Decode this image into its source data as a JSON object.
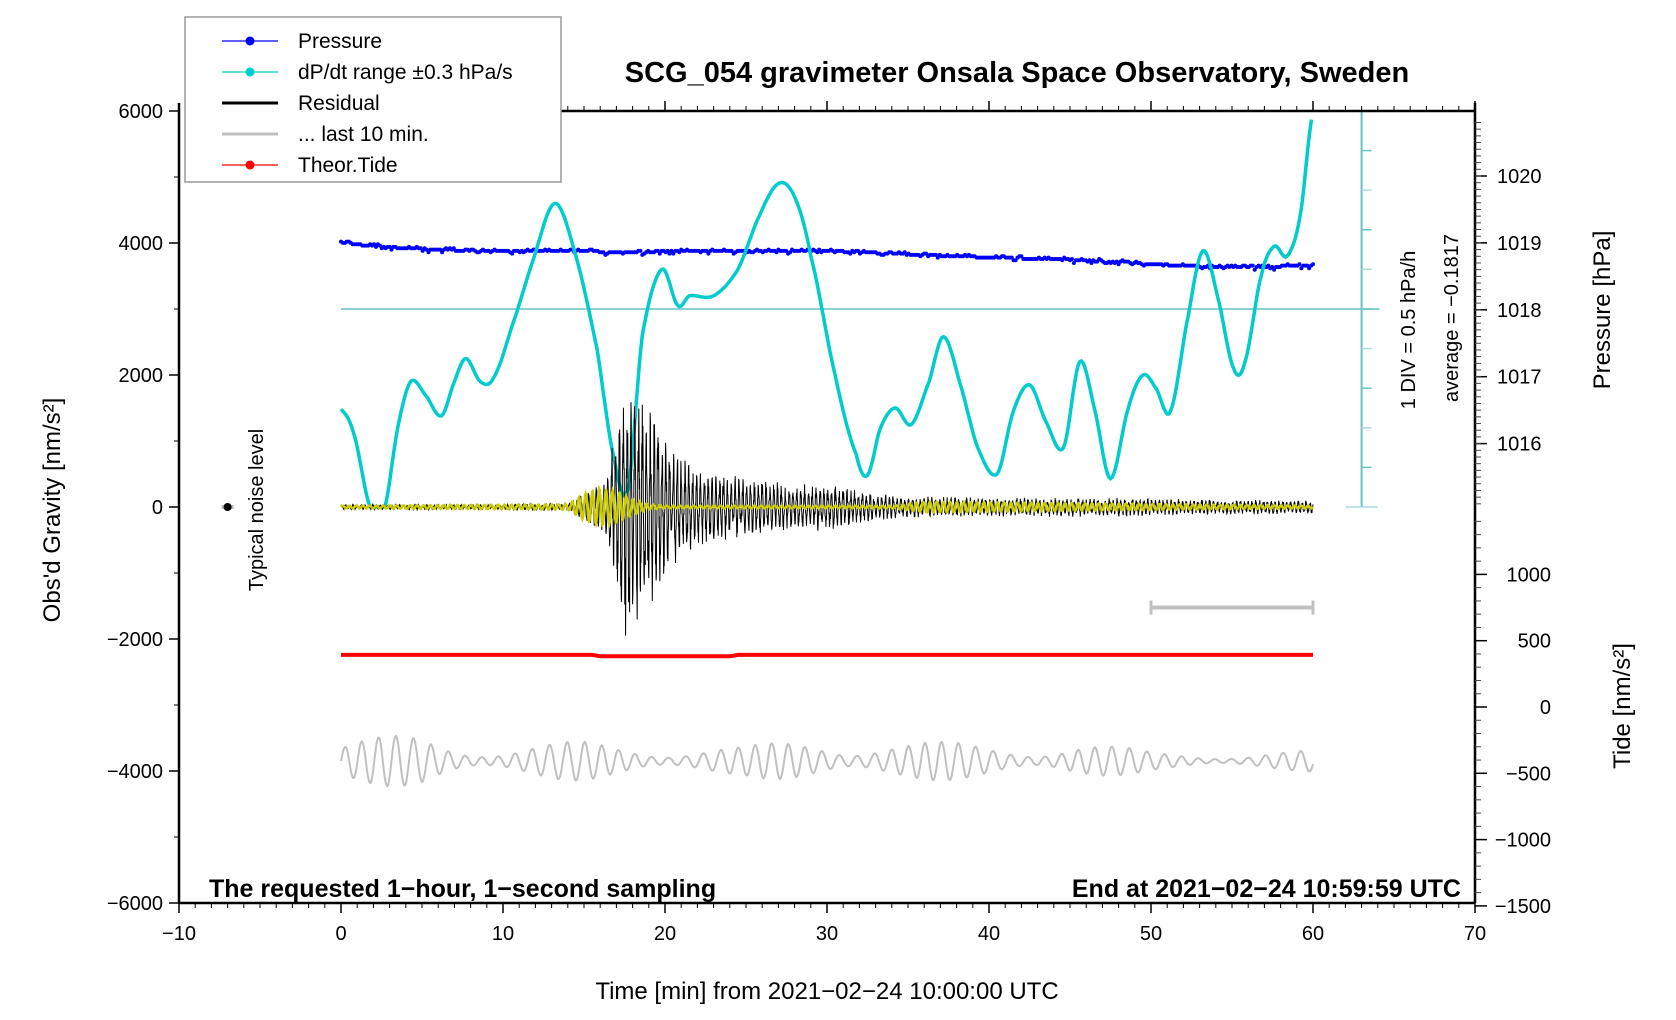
{
  "chart_data": {
    "type": "line",
    "title": "SCG_054 gravimeter Onsala Space Observatory, Sweden",
    "xlabel": "Time [min] from 2021−02−24 10:00:00 UTC",
    "ylabel_left": "Obs'd Gravity [nm/s²]",
    "ylabel_right_pressure": "Pressure [hPa]",
    "ylabel_right_tide": "Tide [nm/s²]",
    "xlim": [
      -10,
      70
    ],
    "ylim_left": [
      -6000,
      6000
    ],
    "x_ticks": [
      -10,
      0,
      10,
      20,
      30,
      40,
      50,
      60,
      70
    ],
    "x_tick_labels": [
      "−10",
      "0",
      "10",
      "20",
      "30",
      "40",
      "50",
      "60",
      "70"
    ],
    "y_left_ticks": [
      -6000,
      -4000,
      -2000,
      0,
      2000,
      4000,
      6000
    ],
    "y_left_tick_labels": [
      "−6000",
      "−4000",
      "−2000",
      "0",
      "2000",
      "4000",
      "6000"
    ],
    "pressure_ticks": [
      1016,
      1017,
      1018,
      1019,
      1020
    ],
    "pressure_tick_labels": [
      "1016",
      "1017",
      "1018",
      "1019",
      "1020"
    ],
    "tide_ticks": [
      -1500,
      -1000,
      -500,
      0,
      500,
      1000
    ],
    "tide_tick_labels": [
      "−1500",
      "−1000",
      "−500",
      "0",
      "500",
      "1000"
    ],
    "legend": {
      "placement": "top-left",
      "entries": [
        {
          "label": "Pressure",
          "color": "#0000ff",
          "marker": "dot"
        },
        {
          "label": "dP/dt range ±0.3 hPa/s",
          "color": "#00cccc",
          "marker": "dot"
        },
        {
          "label": "Residual",
          "color": "#000000",
          "marker": "line"
        },
        {
          "label": "... last 10 min.",
          "color": "#c0c0c0",
          "marker": "line"
        },
        {
          "label": "Theor.Tide",
          "color": "#ff0000",
          "marker": "dot"
        }
      ]
    },
    "annotations": {
      "bottom_left": "The requested 1−hour, 1−second sampling",
      "bottom_right": "End at 2021−02−24 10:59:59 UTC",
      "noise_label": "Typical noise level",
      "div_label": "1 DIV = 0.5 hPa/h",
      "average_label": "average = −0.1817"
    },
    "series": [
      {
        "name": "Pressure",
        "axis": "pressure_hPa",
        "color": "#0000ff",
        "x": [
          0,
          2,
          4,
          6,
          8,
          10,
          14,
          18,
          22,
          26,
          30,
          34,
          38,
          40,
          44,
          48,
          50,
          54,
          56,
          60
        ],
        "values": [
          1019.0,
          1018.96,
          1018.92,
          1018.9,
          1018.88,
          1018.88,
          1018.88,
          1018.86,
          1018.88,
          1018.88,
          1018.88,
          1018.84,
          1018.8,
          1018.78,
          1018.76,
          1018.72,
          1018.68,
          1018.64,
          1018.64,
          1018.66
        ]
      },
      {
        "name": "dP/dt range ±0.3 hPa/s",
        "axis": "gravity_scaled",
        "color": "#00cccc",
        "x": [
          0,
          0.8,
          1.8,
          2.7,
          3.5,
          4.3,
          5.2,
          6.2,
          7.0,
          7.7,
          8.6,
          9.4,
          10.5,
          11.8,
          13.2,
          14.5,
          15.8,
          16.8,
          17.7,
          18.6,
          19.8,
          20.8,
          21.5,
          23,
          24.5,
          25.8,
          27.0,
          28.0,
          29.0,
          30.5,
          31.8,
          32.5,
          33.3,
          34.2,
          35.2,
          36.3,
          37.2,
          38.3,
          39.3,
          40.5,
          41.5,
          42.5,
          43.5,
          44.6,
          45.6,
          46.5,
          47.5,
          48.6,
          49.5,
          50.3,
          51.2,
          52.3,
          53.2,
          54.1,
          55.1,
          55.8,
          56.8,
          57.6,
          58.4,
          59.2,
          60
        ],
        "values": [
          1480,
          1100,
          0,
          0,
          1200,
          1900,
          1700,
          1380,
          1900,
          2250,
          1900,
          1950,
          2700,
          3700,
          4600,
          3800,
          2400,
          800,
          260,
          2600,
          3600,
          3050,
          3200,
          3200,
          3600,
          4400,
          4900,
          4700,
          3800,
          2000,
          800,
          480,
          1200,
          1500,
          1250,
          1900,
          2580,
          1800,
          900,
          500,
          1450,
          1850,
          1300,
          900,
          2200,
          1500,
          430,
          1500,
          2000,
          1800,
          1450,
          2900,
          3880,
          3200,
          2100,
          2200,
          3500,
          3950,
          3800,
          4400,
          6000
        ]
      },
      {
        "name": "Residual",
        "axis": "gravity_nm_s2",
        "color": "#000000",
        "x": [
          0,
          10,
          14,
          15.5,
          16.5,
          17.5,
          18.0,
          18.5,
          19.5,
          20.5,
          22,
          24,
          26,
          28,
          30,
          33,
          36,
          40,
          44,
          48,
          52,
          56,
          60
        ],
        "amplitude": [
          40,
          40,
          60,
          280,
          600,
          2050,
          1900,
          1750,
          1400,
          900,
          600,
          500,
          420,
          350,
          380,
          200,
          160,
          140,
          150,
          150,
          120,
          110,
          100
        ]
      },
      {
        "name": "Filtered residual",
        "axis": "gravity_nm_s2",
        "color": "#cccc00",
        "x": [
          0,
          14,
          15,
          16,
          17,
          18,
          19,
          20,
          34,
          36,
          60
        ],
        "amplitude": [
          20,
          40,
          200,
          280,
          240,
          120,
          40,
          20,
          20,
          80,
          20
        ]
      },
      {
        "name": "... last 10 min.",
        "axis": "gravity_offset",
        "color": "#c0c0c0",
        "x": [
          0,
          5,
          10,
          15,
          20,
          25,
          30,
          35,
          40,
          45,
          50,
          55,
          60
        ],
        "amplitude": [
          320,
          420,
          250,
          300,
          260,
          220,
          420,
          300,
          280,
          320,
          150,
          140,
          160
        ],
        "baseline": -3850,
        "period_note": "stretched 50–60 min trace"
      },
      {
        "name": "Theor.Tide",
        "axis": "tide_nm_s2",
        "color": "#ff0000",
        "x": [
          0,
          16,
          24.5,
          50,
          60
        ],
        "values": [
          393,
          382,
          393,
          393,
          393
        ]
      }
    ],
    "last10_bar": {
      "x_start": 50,
      "x_end": 60,
      "color": "#c0c0c0"
    },
    "noise_marker": {
      "x": -7,
      "y": 0
    },
    "dpdt_scale": {
      "x": 63,
      "zero_level": 0,
      "reference_level": 3000,
      "divisions": 10
    }
  }
}
